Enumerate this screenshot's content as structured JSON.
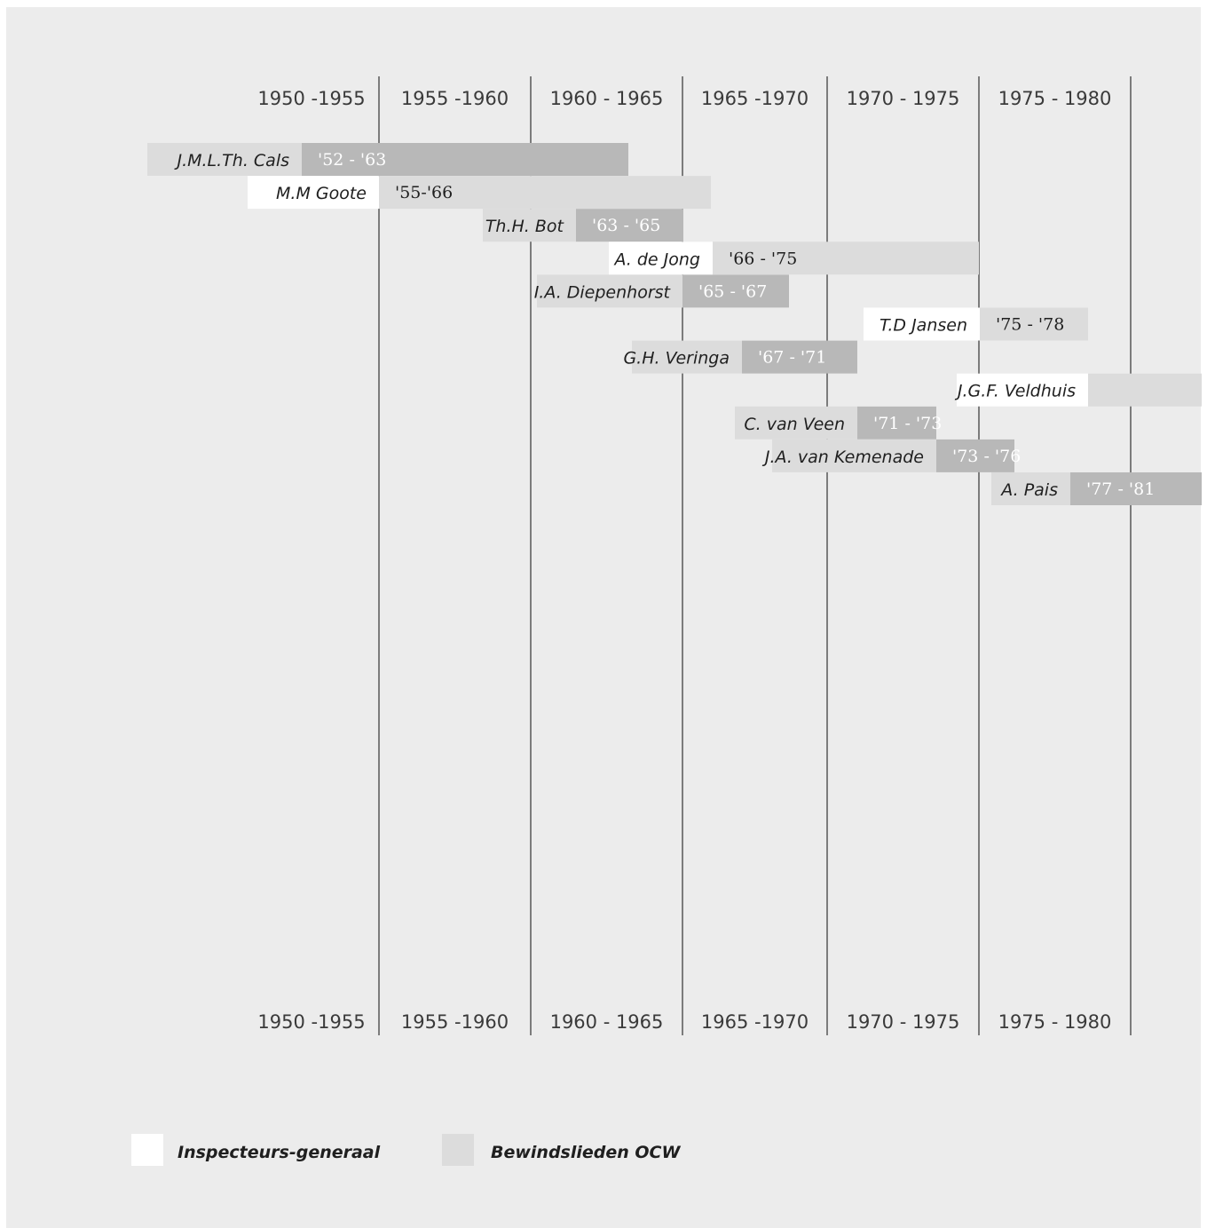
{
  "colors": {
    "background": "#ececec",
    "inspecteur": "#ffffff",
    "bewindsman_name": "#dcdcdc",
    "period_dark": "#b8b8b8",
    "period_light": "#dcdcdc",
    "gridline": "#333333"
  },
  "chart_data": {
    "type": "gantt",
    "periods": [
      "1950 -1955",
      "1955 -1960",
      "1960 - 1965",
      "1965 -1970",
      "1970 - 1975",
      "1975 - 1980"
    ],
    "legend": {
      "inspecteurs": "Inspecteurs-generaal",
      "bewindslieden": "Bewindslieden OCW"
    },
    "rows": [
      {
        "name": "J.M.L.Th. Cals",
        "role": "bewindslieden",
        "label": "'52 - '63",
        "start": 1952,
        "end": 1963,
        "shade": "dark"
      },
      {
        "name": "M.M Goote",
        "role": "inspecteurs",
        "label": "'55-'66",
        "start": 1955,
        "end": 1966,
        "shade": "light"
      },
      {
        "name": "Th.H. Bot",
        "role": "bewindslieden",
        "label": "'63 - '65",
        "start": 1963,
        "end": 1965,
        "shade": "dark"
      },
      {
        "name": "A. de Jong",
        "role": "inspecteurs",
        "label": "'66 - '75",
        "start": 1966,
        "end": 1975,
        "shade": "light"
      },
      {
        "name": "I.A. Diepenhorst",
        "role": "bewindslieden",
        "label": "'65 - '67",
        "start": 1965,
        "end": 1967,
        "shade": "dark"
      },
      {
        "name": "T.D Jansen",
        "role": "inspecteurs",
        "label": "'75 - '78",
        "start": 1975,
        "end": 1978,
        "shade": "light"
      },
      {
        "name": "G.H. Veringa",
        "role": "bewindslieden",
        "label": "'67 - '71",
        "start": 1967,
        "end": 1971,
        "shade": "dark"
      },
      {
        "name": "J.G.F. Veldhuis",
        "role": "inspecteurs",
        "label": "",
        "start": 1978,
        "end": 1982,
        "shade": "light"
      },
      {
        "name": "C. van Veen",
        "role": "bewindslieden",
        "label": "'71 - '73",
        "start": 1971,
        "end": 1973,
        "shade": "dark"
      },
      {
        "name": "J.A. van Kemenade",
        "role": "bewindslieden",
        "label": "'73 - '76",
        "start": 1973,
        "end": 1976,
        "shade": "dark"
      },
      {
        "name": "A. Pais",
        "role": "bewindslieden",
        "label": "'77 - '81",
        "start": 1977,
        "end": 1981,
        "shade": "dark"
      }
    ]
  }
}
